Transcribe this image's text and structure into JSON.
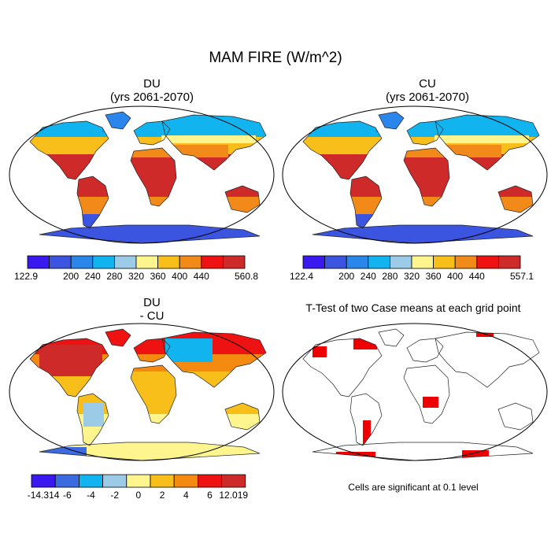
{
  "title": "MAM FIRE (W/m^2)",
  "panels": [
    {
      "id": "du",
      "title_line1": "DU",
      "title_line2": "(yrs 2061-2070)",
      "colorbar": {
        "labels": [
          "122.9",
          "200",
          "240",
          "280",
          "320",
          "360",
          "400",
          "440",
          "560.8"
        ],
        "colors": [
          "#3a18f0",
          "#3c55e0",
          "#2a86ea",
          "#12b4ef",
          "#9ccbe8",
          "#fff58f",
          "#f8be1a",
          "#f18a18",
          "#ef1212",
          "#cf2a2a"
        ]
      }
    },
    {
      "id": "cu",
      "title_line1": "CU",
      "title_line2": "(yrs 2061-2070)",
      "colorbar": {
        "labels": [
          "122.4",
          "200",
          "240",
          "280",
          "320",
          "360",
          "400",
          "440",
          "557.1"
        ],
        "colors": [
          "#3a18f0",
          "#3c55e0",
          "#2a86ea",
          "#12b4ef",
          "#9ccbe8",
          "#fff58f",
          "#f8be1a",
          "#f18a18",
          "#ef1212",
          "#cf2a2a"
        ]
      }
    },
    {
      "id": "diff",
      "title_line1": "DU",
      "title_line2": "- CU",
      "colorbar": {
        "labels": [
          "-14.314",
          "-6",
          "-4",
          "-2",
          "0",
          "2",
          "4",
          "6",
          "12.019"
        ],
        "colors": [
          "#3a18f0",
          "#3c6ae0",
          "#12b4ef",
          "#9ccbe8",
          "#fff58f",
          "#f8be1a",
          "#f58a10",
          "#ef1212",
          "#cf2a2a"
        ]
      }
    },
    {
      "id": "ttest",
      "title": "T-Test of two Case means at each grid point",
      "note": "Cells are significant at 0.1 level",
      "significant_color": "#ee0000"
    }
  ]
}
